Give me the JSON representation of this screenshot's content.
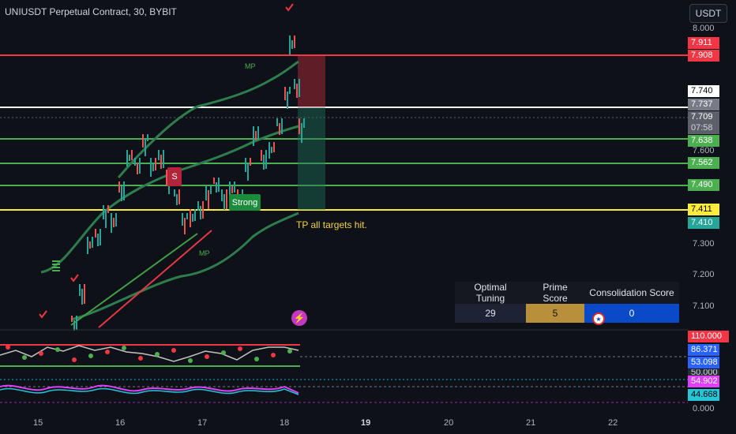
{
  "header": {
    "title": "UNIUSDT Perpetual Contract, 30, BYBIT",
    "currency_button": "USDT"
  },
  "price_axis": {
    "ticks": [
      "8.000",
      "7.600",
      "7.300",
      "7.200",
      "7.100",
      "0.000"
    ],
    "labels": {
      "l7911": "7.911",
      "l7908": "7.908",
      "l7740": "7.740",
      "l7737": "7.737",
      "l7709": "7.709",
      "countdown": "07:58",
      "l7638": "7.638",
      "l7562": "7.562",
      "l7490": "7.490",
      "l7411": "7.411",
      "l7410": "7.410",
      "l110": "110.000",
      "l86": "86.371",
      "l53": "53.098",
      "l50": "50.000",
      "l54": "54.902",
      "l44": "44.668"
    }
  },
  "time_axis": [
    "15",
    "16",
    "17",
    "18",
    "19",
    "20",
    "21",
    "22"
  ],
  "annotations": {
    "tp_text": "TP all targets hit.",
    "mp_upper": "MP",
    "mp_lower": "MP",
    "sell_signal": "S",
    "strong_signal": "Strong"
  },
  "stats_table": {
    "headers": [
      "Optimal Tuning",
      "Prime Score",
      "Consolidation  Score"
    ],
    "values": [
      "29",
      "5",
      "0"
    ]
  },
  "colors": {
    "background": "#0e1117",
    "resistance_red": "#f23645",
    "support_green": "#4caf50",
    "entry_white": "#ffffff",
    "stop_yellow": "#ffeb3b",
    "prime_gold": "#b8903a",
    "consolidation_blue": "#0a49c7"
  },
  "icons": [
    "lightning-icon",
    "us-flag-icon",
    "checkmark-icon"
  ]
}
